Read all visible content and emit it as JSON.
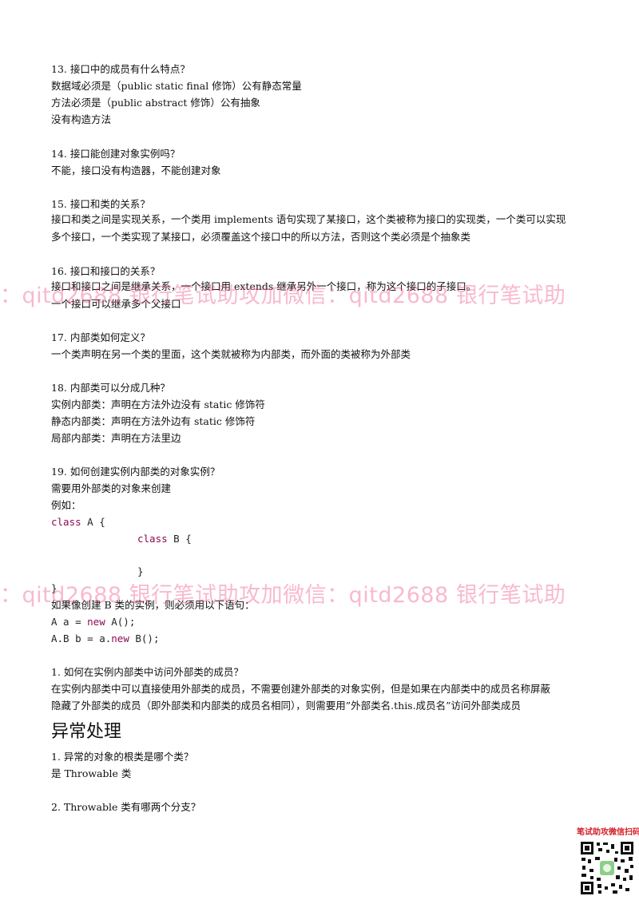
{
  "q13": {
    "title": "13. 接口中的成员有什么特点？",
    "lines": [
      "数据域必须是（public static final 修饰）公有静态常量",
      "方法必须是（public abstract 修饰）公有抽象",
      "没有构造方法"
    ]
  },
  "q14": {
    "title": "14. 接口能创建对象实例吗？",
    "lines": [
      "不能，接口没有构造器，不能创建对象"
    ]
  },
  "q15": {
    "title": "15. 接口和类的关系？",
    "lines": [
      "接口和类之间是实现关系，一个类用 implements 语句实现了某接口，这个类被称为接口的实现类，一个类可以实现",
      "多个接口，一个类实现了某接口，必须覆盖这个接口中的所以方法，否则这个类必须是个抽象类"
    ]
  },
  "q16": {
    "title": "16. 接口和接口的关系？",
    "lines": [
      "接口和接口之间是继承关系，一个接口用 extends 继承另外一个接口，称为这个接口的子接口。",
      "一个接口可以继承多个父接口"
    ]
  },
  "q17": {
    "title": "17. 内部类如何定义？",
    "lines": [
      "一个类声明在另一个类的里面，这个类就被称为内部类，而外面的类被称为外部类"
    ]
  },
  "q18": {
    "title": "18. 内部类可以分成几种？",
    "lines": [
      "实例内部类：声明在方法外边没有 static 修饰符",
      "静态内部类：声明在方法外边有 static 修饰符",
      "局部内部类：声明在方法里边"
    ]
  },
  "q19": {
    "title": "19. 如何创建实例内部类的对象实例？",
    "lines": [
      "需要用外部类的对象来创建",
      "例如："
    ],
    "code": {
      "line1_kw": "class",
      "line1_rest": " A {",
      "line2_kw": "class",
      "line2_rest": " B {",
      "line3": "}",
      "line4": "}"
    },
    "after": "如果像创建 B 类的实例，则必须用以下语句：",
    "stmt1_pre": "A a = ",
    "stmt1_kw": "new",
    "stmt1_post": " A();",
    "stmt2_pre": "A.B b = a.",
    "stmt2_kw": "new",
    "stmt2_post": " B();"
  },
  "q1b": {
    "title": "1.   如何在实例内部类中访问外部类的成员？",
    "lines": [
      "在实例内部类中可以直接使用外部类的成员，不需要创建外部类的对象实例，但是如果在内部类中的成员名称屏蔽",
      "隐藏了外部类的成员（即外部类和内部类的成员名相同），则需要用”外部类名.this.成员名”访问外部类成员"
    ]
  },
  "section": {
    "title": "异常处理"
  },
  "e1": {
    "title": "1.   异常的对象的根类是哪个类？",
    "lines": [
      "是 Throwable 类"
    ]
  },
  "e2": {
    "title": "2.   Throwable 类有哪两个分支？"
  },
  "watermark": {
    "text": "：qitd2688      银行笔试助攻加微信：qitd2688      银行笔试助",
    "color": "#ec4882"
  },
  "qr": {
    "caption": "笔试助攻微信扫码 ↓"
  }
}
